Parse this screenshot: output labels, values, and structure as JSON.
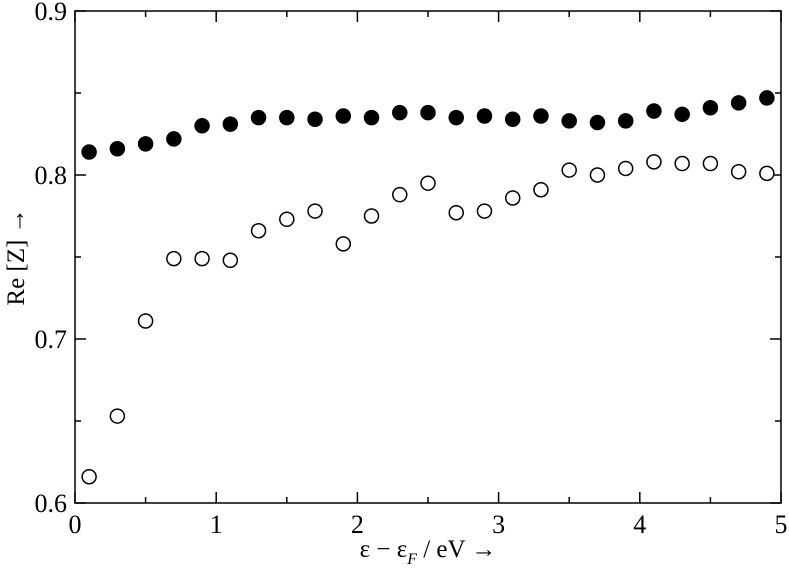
{
  "chart_data": {
    "type": "scatter",
    "xlim": [
      0,
      5
    ],
    "ylim": [
      0.6,
      0.9
    ],
    "xticks": [
      0,
      1,
      2,
      3,
      4,
      5
    ],
    "yticks": [
      0.6,
      0.7,
      0.8,
      0.9
    ],
    "xtick_labels": [
      "0",
      "1",
      "2",
      "3",
      "4",
      "5"
    ],
    "ytick_labels": [
      "0.6",
      "0.7",
      "0.8",
      "0.9"
    ],
    "xlabel": {
      "prefix": "ε − ε",
      "sub": "F",
      "suffix": " / eV →"
    },
    "ylabel": "Re [Z] →",
    "grid": false,
    "legend": "none",
    "series": [
      {
        "marker": "filled-circle",
        "color": "#000000",
        "x": [
          0.1,
          0.3,
          0.5,
          0.7,
          0.9,
          1.1,
          1.3,
          1.5,
          1.7,
          1.9,
          2.1,
          2.3,
          2.5,
          2.7,
          2.9,
          3.1,
          3.3,
          3.5,
          3.7,
          3.9,
          4.1,
          4.3,
          4.5,
          4.7,
          4.9
        ],
        "y": [
          0.814,
          0.816,
          0.819,
          0.822,
          0.83,
          0.831,
          0.835,
          0.835,
          0.834,
          0.836,
          0.835,
          0.838,
          0.838,
          0.835,
          0.836,
          0.834,
          0.836,
          0.833,
          0.832,
          0.833,
          0.839,
          0.837,
          0.841,
          0.844,
          0.847
        ]
      },
      {
        "marker": "open-circle",
        "color": "#000000",
        "x": [
          0.1,
          0.3,
          0.5,
          0.7,
          0.9,
          1.1,
          1.3,
          1.5,
          1.7,
          1.9,
          2.1,
          2.3,
          2.5,
          2.7,
          2.9,
          3.1,
          3.3,
          3.5,
          3.7,
          3.9,
          4.1,
          4.3,
          4.5,
          4.7,
          4.9
        ],
        "y": [
          0.616,
          0.653,
          0.711,
          0.749,
          0.749,
          0.748,
          0.766,
          0.773,
          0.778,
          0.758,
          0.775,
          0.788,
          0.795,
          0.777,
          0.778,
          0.786,
          0.791,
          0.803,
          0.8,
          0.804,
          0.808,
          0.807,
          0.807,
          0.802,
          0.801
        ]
      }
    ]
  }
}
